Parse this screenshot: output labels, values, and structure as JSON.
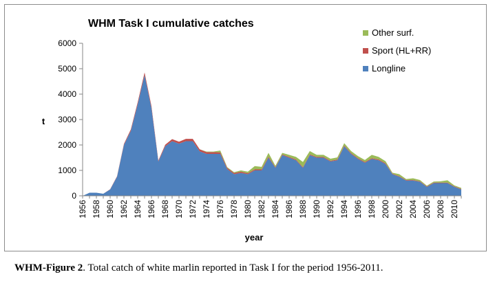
{
  "chart_data": {
    "type": "area",
    "stacked": true,
    "title": "WHM Task I cumulative catches",
    "xlabel": "year",
    "ylabel": "t",
    "ylim": [
      0,
      6000
    ],
    "yticks": [
      0,
      1000,
      2000,
      3000,
      4000,
      5000,
      6000
    ],
    "x": [
      1956,
      1957,
      1958,
      1959,
      1960,
      1961,
      1962,
      1963,
      1964,
      1965,
      1966,
      1967,
      1968,
      1969,
      1970,
      1971,
      1972,
      1973,
      1974,
      1975,
      1976,
      1977,
      1978,
      1979,
      1980,
      1981,
      1982,
      1983,
      1984,
      1985,
      1986,
      1987,
      1988,
      1989,
      1990,
      1991,
      1992,
      1993,
      1994,
      1995,
      1996,
      1997,
      1998,
      1999,
      2000,
      2001,
      2002,
      2003,
      2004,
      2005,
      2006,
      2007,
      2008,
      2009,
      2010,
      2011
    ],
    "xtick_labels": [
      "1956",
      "1958",
      "1960",
      "1962",
      "1964",
      "1966",
      "1968",
      "1970",
      "1972",
      "1974",
      "1976",
      "1978",
      "1980",
      "1982",
      "1984",
      "1986",
      "1988",
      "1990",
      "1992",
      "1994",
      "1996",
      "1998",
      "2000",
      "2002",
      "2004",
      "2006",
      "2008",
      "2010"
    ],
    "grid": false,
    "legend_position": "top-right",
    "series": [
      {
        "name": "Longline",
        "color": "#4f81bd",
        "values": [
          0,
          120,
          120,
          80,
          250,
          750,
          2000,
          2550,
          3600,
          4750,
          3450,
          1350,
          1950,
          2150,
          2050,
          2150,
          2150,
          1750,
          1650,
          1650,
          1650,
          1050,
          850,
          900,
          850,
          1000,
          1000,
          1500,
          1100,
          1600,
          1500,
          1400,
          1100,
          1600,
          1500,
          1500,
          1350,
          1400,
          1950,
          1650,
          1450,
          1300,
          1450,
          1400,
          1250,
          850,
          750,
          600,
          600,
          550,
          350,
          500,
          500,
          500,
          350,
          250
        ]
      },
      {
        "name": "Sport (HL+RR)",
        "color": "#c0504d",
        "values": [
          0,
          0,
          0,
          0,
          10,
          20,
          40,
          60,
          80,
          100,
          80,
          40,
          60,
          80,
          80,
          90,
          90,
          80,
          70,
          70,
          60,
          50,
          50,
          50,
          40,
          40,
          40,
          40,
          30,
          30,
          30,
          30,
          30,
          30,
          30,
          30,
          30,
          30,
          30,
          30,
          30,
          30,
          30,
          30,
          30,
          20,
          20,
          20,
          20,
          20,
          20,
          20,
          20,
          20,
          20,
          20
        ]
      },
      {
        "name": "Other surf.",
        "color": "#9bbb59",
        "values": [
          0,
          0,
          0,
          0,
          0,
          0,
          0,
          0,
          0,
          0,
          0,
          0,
          0,
          0,
          0,
          0,
          0,
          0,
          20,
          20,
          70,
          30,
          30,
          50,
          60,
          130,
          100,
          150,
          50,
          60,
          80,
          100,
          200,
          130,
          80,
          80,
          80,
          80,
          90,
          80,
          80,
          80,
          130,
          100,
          80,
          40,
          80,
          40,
          70,
          50,
          30,
          40,
          50,
          90,
          40,
          40
        ]
      }
    ]
  },
  "caption": {
    "prefix": "WHM-Figure 2",
    "text": ". Total catch of white marlin reported in Task I for the period 1956-2011."
  }
}
